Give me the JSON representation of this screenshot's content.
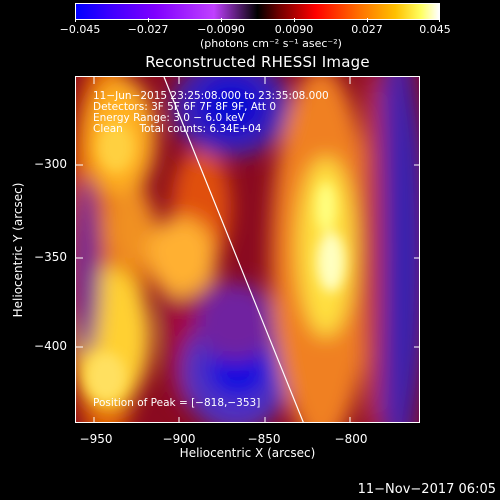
{
  "colorbar": {
    "tick_labels": [
      "−0.045",
      "−0.027",
      "−0.0090",
      "0.0090",
      "0.027",
      "0.045"
    ],
    "units": "(photons cm⁻² s⁻¹ asec⁻²)",
    "range": [
      -0.045,
      0.045
    ]
  },
  "title": "Reconstructed RHESSI Image",
  "annotations": {
    "time_range": "11−Jun−2015 23:25:08.000 to 23:35:08.000",
    "detectors": "Detectors: 3F 5F 6F 7F 8F 9F, Att 0",
    "energy_range": "Energy Range: 3.0 − 6.0 keV",
    "clean": "Clean     Total counts: 6.34E+04",
    "peak_position": "Position of Peak = [−818,−353]"
  },
  "axes": {
    "xlabel": "Heliocentric X (arcsec)",
    "ylabel": "Heliocentric Y (arcsec)",
    "xticks": [
      "−950",
      "−900",
      "−850",
      "−800"
    ],
    "yticks": [
      "−300",
      "−350",
      "−400"
    ],
    "xlim": [
      -968,
      -764
    ],
    "ylim": [
      -448,
      -243
    ]
  },
  "footer": {
    "date": "11−Nov−2017 06:05"
  },
  "colors": {
    "colormap": [
      "#0000ff",
      "#7f00ff",
      "#c040ff",
      "#000000",
      "#ff0000",
      "#ffa000",
      "#ffff00",
      "#ffffff"
    ]
  }
}
